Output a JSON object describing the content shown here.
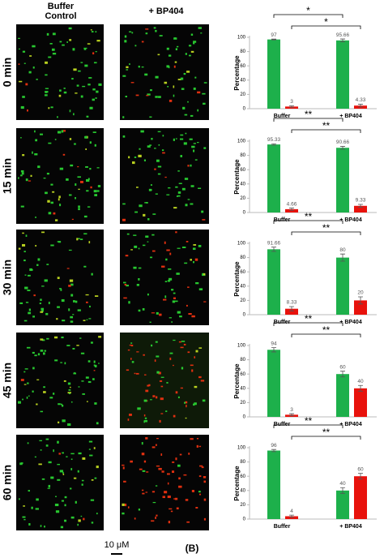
{
  "figure": {
    "column_headers": [
      "Buffer Control",
      "+ BP404"
    ],
    "row_labels": [
      "0 min",
      "15 min",
      "30 min",
      "45 min",
      "60 min"
    ],
    "scale_bar": "10 μM",
    "panel_label": "(B)"
  },
  "chart_data": [
    {
      "type": "bar",
      "y_label": "Percentage",
      "categories": [
        "Buffer",
        "+ BP404"
      ],
      "ylim": [
        0,
        100
      ],
      "yticks": [
        0,
        20,
        40,
        60,
        80,
        100
      ],
      "significance": [
        "*",
        "*"
      ],
      "series": [
        {
          "color": "#1db04b",
          "values": [
            97,
            95.66
          ],
          "errors": [
            0.5,
            2
          ]
        },
        {
          "color": "#e8120c",
          "values": [
            3,
            4.33
          ],
          "errors": [
            1,
            2
          ]
        }
      ]
    },
    {
      "type": "bar",
      "y_label": "Percentage",
      "categories": [
        "Buffer",
        "+ BP404"
      ],
      "ylim": [
        0,
        100
      ],
      "yticks": [
        0,
        20,
        40,
        60,
        80,
        100
      ],
      "significance": [
        "**",
        "**"
      ],
      "series": [
        {
          "color": "#1db04b",
          "values": [
            95.33,
            90.66
          ],
          "errors": [
            1,
            2
          ]
        },
        {
          "color": "#e8120c",
          "values": [
            4.66,
            9.33
          ],
          "errors": [
            1.5,
            2
          ]
        }
      ]
    },
    {
      "type": "bar",
      "y_label": "Percentage",
      "categories": [
        "Buffer",
        "+ BP404"
      ],
      "ylim": [
        0,
        100
      ],
      "yticks": [
        0,
        20,
        40,
        60,
        80,
        100
      ],
      "significance": [
        "**",
        "**"
      ],
      "series": [
        {
          "color": "#1db04b",
          "values": [
            91.66,
            80
          ],
          "errors": [
            3,
            5
          ]
        },
        {
          "color": "#e8120c",
          "values": [
            8.33,
            20
          ],
          "errors": [
            3,
            5
          ]
        }
      ]
    },
    {
      "type": "bar",
      "y_label": "Percentage",
      "categories": [
        "Buffer",
        "+ BP404"
      ],
      "ylim": [
        0,
        100
      ],
      "yticks": [
        0,
        20,
        40,
        60,
        80,
        100
      ],
      "significance": [
        "**",
        "**"
      ],
      "series": [
        {
          "color": "#1db04b",
          "values": [
            94,
            60
          ],
          "errors": [
            3,
            4
          ]
        },
        {
          "color": "#e8120c",
          "values": [
            3,
            40
          ],
          "errors": [
            1.5,
            4
          ]
        }
      ]
    },
    {
      "type": "bar",
      "y_label": "Percentage",
      "categories": [
        "Buffer",
        "+ BP404"
      ],
      "ylim": [
        0,
        100
      ],
      "yticks": [
        0,
        20,
        40,
        60,
        80,
        100
      ],
      "significance": [
        "**",
        "**"
      ],
      "series": [
        {
          "color": "#1db04b",
          "values": [
            96,
            40
          ],
          "errors": [
            1.5,
            4
          ]
        },
        {
          "color": "#e8120c",
          "values": [
            4,
            60
          ],
          "errors": [
            1.5,
            4
          ]
        }
      ]
    }
  ]
}
